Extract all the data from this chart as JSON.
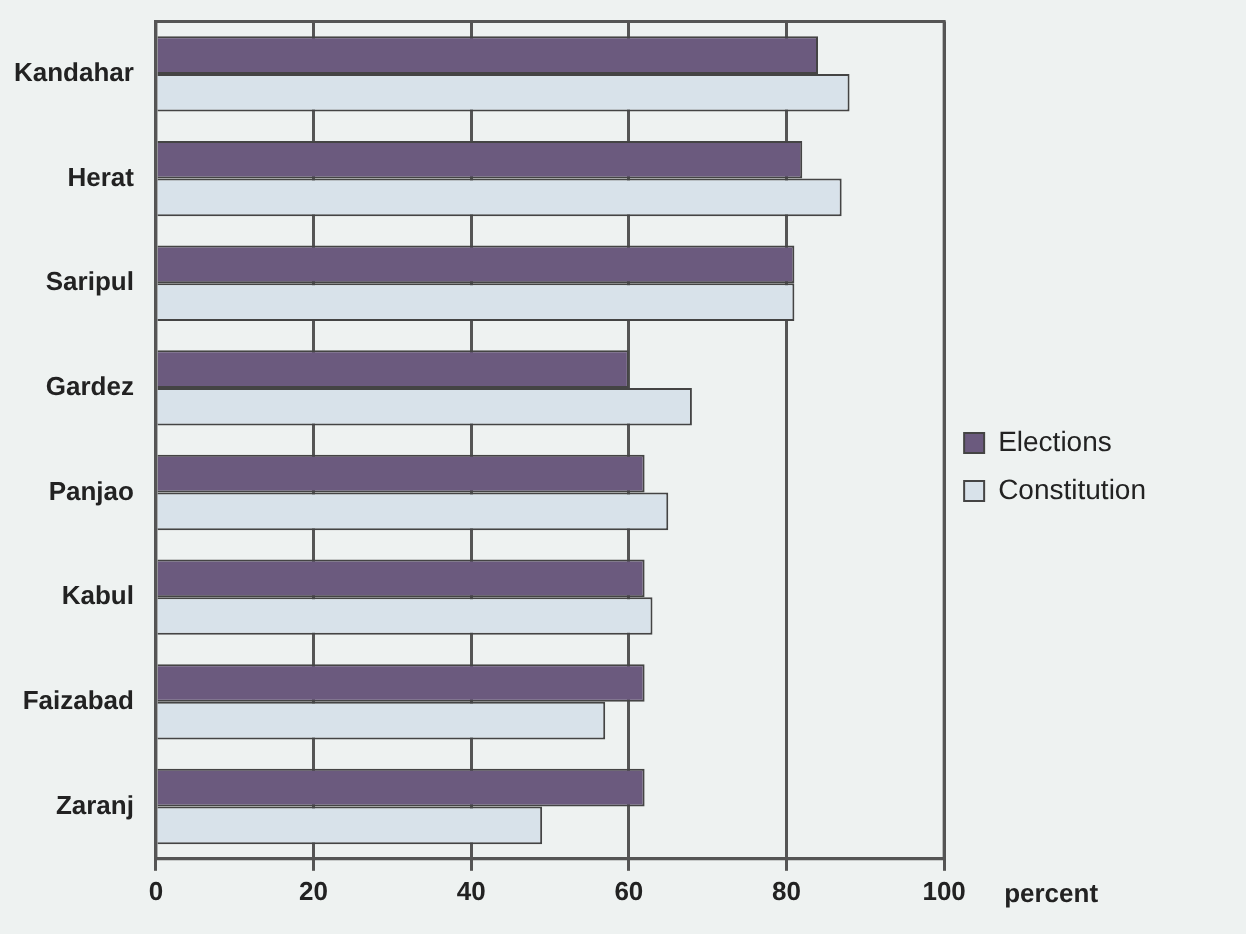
{
  "chart_data": {
    "type": "bar",
    "orientation": "horizontal",
    "xlabel": "percent",
    "categories": [
      "Kandahar",
      "Herat",
      "Saripul",
      "Gardez",
      "Panjao",
      "Kabul",
      "Faizabad",
      "Zaranj"
    ],
    "series": [
      {
        "name": "Elections",
        "color": "#6b5a7e",
        "values": [
          84,
          82,
          81,
          60,
          62,
          62,
          62,
          62
        ]
      },
      {
        "name": "Constitution",
        "color": "#d8e2ea",
        "values": [
          88,
          87,
          81,
          68,
          65,
          63,
          57,
          49
        ]
      }
    ],
    "xlim": [
      0,
      100
    ],
    "xticks": [
      0,
      20,
      40,
      60,
      80,
      100
    ],
    "grid": "x",
    "legend": "right"
  }
}
